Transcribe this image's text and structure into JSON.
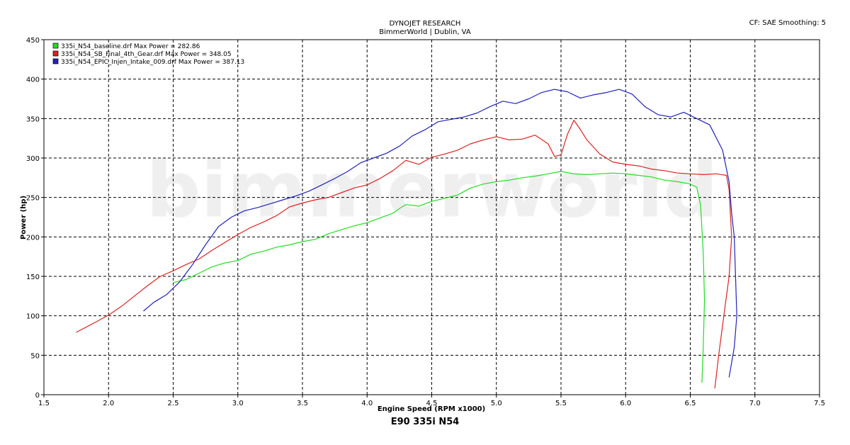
{
  "header": {
    "line1": "DYNOJET RESEARCH",
    "line2": "BimmerWorld | Dublin, VA",
    "settings": "CF: SAE  Smoothing: 5"
  },
  "watermark": "bimmerworld",
  "subtitle": "E90 335i N54",
  "chart_data": {
    "type": "line",
    "title": "",
    "xlabel": "Engine Speed (RPM x1000)",
    "ylabel": "Power (hp)",
    "xlim": [
      1.5,
      7.5
    ],
    "ylim": [
      0,
      450
    ],
    "xticks": [
      "1.5",
      "2.0",
      "2.5",
      "3.0",
      "3.5",
      "4.0",
      "4.5",
      "5.0",
      "5.5",
      "6.0",
      "6.5",
      "7.0",
      "7.5"
    ],
    "yticks": [
      "0",
      "50",
      "100",
      "150",
      "200",
      "250",
      "300",
      "350",
      "400",
      "450"
    ],
    "grid": true,
    "legend_position": "top-left",
    "series": [
      {
        "name": "335i_N54_baseline.drf Max Power = 282.86",
        "color": "#22dd22",
        "points": [
          [
            2.5,
            142
          ],
          [
            2.6,
            146
          ],
          [
            2.7,
            154
          ],
          [
            2.8,
            162
          ],
          [
            2.9,
            167
          ],
          [
            3.0,
            170
          ],
          [
            3.1,
            178
          ],
          [
            3.2,
            182
          ],
          [
            3.3,
            187
          ],
          [
            3.4,
            190
          ],
          [
            3.5,
            194
          ],
          [
            3.6,
            197
          ],
          [
            3.7,
            204
          ],
          [
            3.8,
            209
          ],
          [
            3.9,
            214
          ],
          [
            4.0,
            218
          ],
          [
            4.1,
            224
          ],
          [
            4.2,
            230
          ],
          [
            4.25,
            236
          ],
          [
            4.3,
            241
          ],
          [
            4.4,
            239
          ],
          [
            4.5,
            245
          ],
          [
            4.6,
            249
          ],
          [
            4.7,
            253
          ],
          [
            4.8,
            262
          ],
          [
            4.9,
            267
          ],
          [
            5.0,
            270
          ],
          [
            5.1,
            272
          ],
          [
            5.2,
            275
          ],
          [
            5.3,
            277
          ],
          [
            5.4,
            280
          ],
          [
            5.5,
            283
          ],
          [
            5.6,
            280
          ],
          [
            5.7,
            279
          ],
          [
            5.8,
            280
          ],
          [
            5.9,
            281
          ],
          [
            6.0,
            280
          ],
          [
            6.1,
            278
          ],
          [
            6.2,
            276
          ],
          [
            6.3,
            272
          ],
          [
            6.4,
            270
          ],
          [
            6.5,
            267
          ],
          [
            6.55,
            263
          ],
          [
            6.58,
            240
          ],
          [
            6.6,
            180
          ],
          [
            6.61,
            120
          ],
          [
            6.6,
            60
          ],
          [
            6.59,
            15
          ]
        ]
      },
      {
        "name": "335i_N54_SB_Final_4th_Gear.drf Max Power = 348.05",
        "color": "#dd2222",
        "points": [
          [
            1.75,
            79
          ],
          [
            1.9,
            92
          ],
          [
            2.0,
            101
          ],
          [
            2.1,
            112
          ],
          [
            2.2,
            125
          ],
          [
            2.3,
            138
          ],
          [
            2.4,
            150
          ],
          [
            2.5,
            157
          ],
          [
            2.6,
            165
          ],
          [
            2.7,
            172
          ],
          [
            2.8,
            183
          ],
          [
            2.9,
            193
          ],
          [
            3.0,
            203
          ],
          [
            3.1,
            212
          ],
          [
            3.2,
            219
          ],
          [
            3.3,
            227
          ],
          [
            3.4,
            238
          ],
          [
            3.5,
            243
          ],
          [
            3.6,
            247
          ],
          [
            3.7,
            250
          ],
          [
            3.8,
            256
          ],
          [
            3.9,
            262
          ],
          [
            4.0,
            266
          ],
          [
            4.1,
            274
          ],
          [
            4.2,
            284
          ],
          [
            4.3,
            297
          ],
          [
            4.4,
            292
          ],
          [
            4.5,
            301
          ],
          [
            4.6,
            305
          ],
          [
            4.7,
            310
          ],
          [
            4.8,
            318
          ],
          [
            4.9,
            323
          ],
          [
            5.0,
            327
          ],
          [
            5.1,
            323
          ],
          [
            5.2,
            324
          ],
          [
            5.3,
            329
          ],
          [
            5.4,
            318
          ],
          [
            5.45,
            302
          ],
          [
            5.5,
            304
          ],
          [
            5.55,
            330
          ],
          [
            5.6,
            348
          ],
          [
            5.65,
            336
          ],
          [
            5.7,
            323
          ],
          [
            5.8,
            305
          ],
          [
            5.9,
            295
          ],
          [
            6.0,
            292
          ],
          [
            6.1,
            290
          ],
          [
            6.2,
            286
          ],
          [
            6.3,
            284
          ],
          [
            6.4,
            281
          ],
          [
            6.5,
            280
          ],
          [
            6.6,
            279
          ],
          [
            6.7,
            280
          ],
          [
            6.78,
            278
          ],
          [
            6.8,
            260
          ],
          [
            6.82,
            200
          ],
          [
            6.8,
            150
          ],
          [
            6.76,
            100
          ],
          [
            6.72,
            50
          ],
          [
            6.69,
            8
          ]
        ]
      },
      {
        "name": "335i_N54_EPIC_Injen_Intake_009.drf Max Power = 387.13",
        "color": "#2222bb",
        "points": [
          [
            2.27,
            106
          ],
          [
            2.35,
            117
          ],
          [
            2.45,
            127
          ],
          [
            2.55,
            143
          ],
          [
            2.65,
            165
          ],
          [
            2.75,
            190
          ],
          [
            2.85,
            213
          ],
          [
            2.95,
            225
          ],
          [
            3.05,
            233
          ],
          [
            3.15,
            237
          ],
          [
            3.25,
            242
          ],
          [
            3.35,
            247
          ],
          [
            3.45,
            252
          ],
          [
            3.55,
            258
          ],
          [
            3.65,
            266
          ],
          [
            3.75,
            274
          ],
          [
            3.85,
            283
          ],
          [
            3.95,
            294
          ],
          [
            4.05,
            300
          ],
          [
            4.15,
            306
          ],
          [
            4.25,
            315
          ],
          [
            4.35,
            328
          ],
          [
            4.45,
            336
          ],
          [
            4.55,
            346
          ],
          [
            4.65,
            349
          ],
          [
            4.75,
            352
          ],
          [
            4.85,
            357
          ],
          [
            4.95,
            365
          ],
          [
            5.05,
            372
          ],
          [
            5.15,
            369
          ],
          [
            5.25,
            375
          ],
          [
            5.35,
            383
          ],
          [
            5.45,
            387
          ],
          [
            5.55,
            384
          ],
          [
            5.65,
            376
          ],
          [
            5.75,
            380
          ],
          [
            5.85,
            383
          ],
          [
            5.95,
            387
          ],
          [
            6.05,
            381
          ],
          [
            6.15,
            365
          ],
          [
            6.25,
            355
          ],
          [
            6.35,
            352
          ],
          [
            6.45,
            358
          ],
          [
            6.55,
            350
          ],
          [
            6.65,
            342
          ],
          [
            6.75,
            310
          ],
          [
            6.8,
            270
          ],
          [
            6.82,
            230
          ],
          [
            6.84,
            200
          ],
          [
            6.85,
            150
          ],
          [
            6.86,
            100
          ],
          [
            6.84,
            60
          ],
          [
            6.8,
            22
          ]
        ]
      }
    ]
  }
}
